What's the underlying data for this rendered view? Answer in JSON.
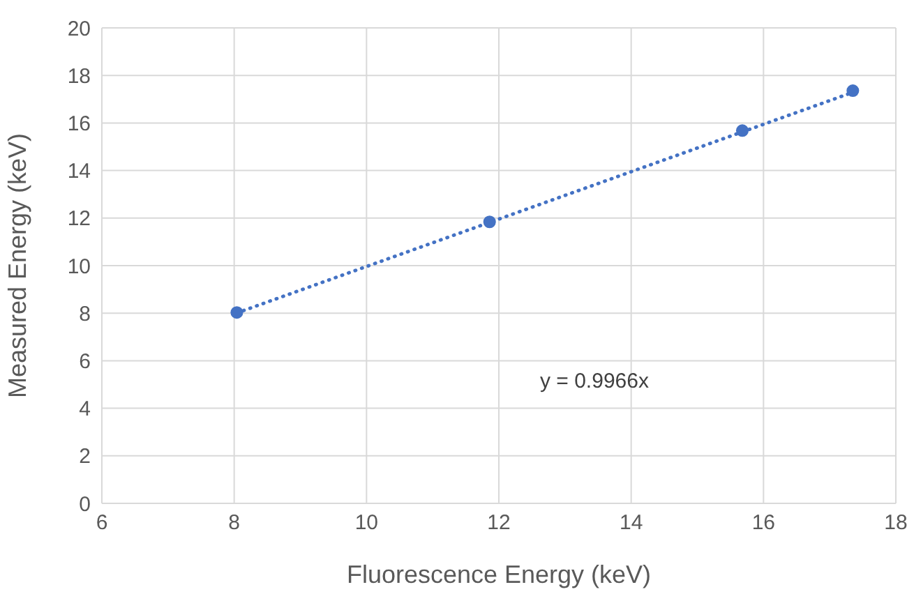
{
  "chart_data": {
    "type": "scatter",
    "xlabel": "Fluorescence Energy (keV)",
    "ylabel": "Measured Energy (keV)",
    "x": [
      8.04,
      11.86,
      15.68,
      17.35
    ],
    "series": [
      {
        "type": "scatter",
        "color": "#4472c4",
        "values": [
          8.03,
          11.84,
          15.68,
          17.36
        ],
        "marker": "circle"
      },
      {
        "type": "line",
        "color": "#4472c4",
        "x": [
          8.04,
          17.35
        ],
        "values": [
          8.01,
          17.29
        ],
        "marker": "none",
        "line_style": "dotted"
      }
    ],
    "xlim": [
      6,
      18
    ],
    "xticks": [
      6,
      8,
      10,
      12,
      14,
      16,
      18
    ],
    "ylim": [
      0,
      20
    ],
    "yticks": [
      0,
      2,
      4,
      6,
      8,
      10,
      12,
      14,
      16,
      18,
      20
    ],
    "grid": true,
    "legend": false,
    "annotations": [
      "y = 0.9966x"
    ]
  }
}
